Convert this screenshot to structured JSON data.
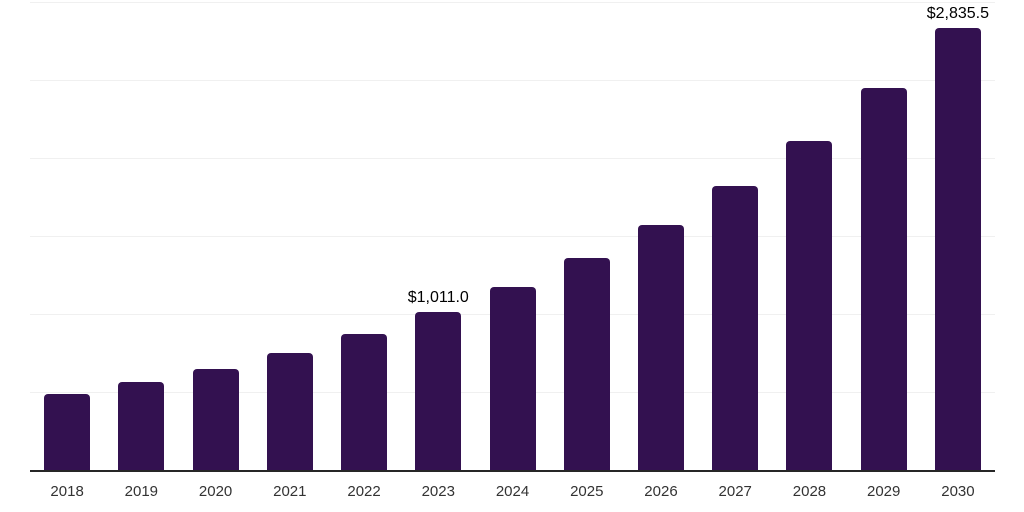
{
  "chart_data": {
    "type": "bar",
    "title": "",
    "xlabel": "",
    "ylabel": "",
    "categories": [
      "2018",
      "2019",
      "2020",
      "2021",
      "2022",
      "2023",
      "2024",
      "2025",
      "2026",
      "2027",
      "2028",
      "2029",
      "2030"
    ],
    "values": [
      485,
      562,
      650,
      753,
      872,
      1011.0,
      1171,
      1357,
      1573,
      1822,
      2112,
      2447,
      2835.5
    ],
    "labels": [
      "",
      "",
      "",
      "",
      "",
      "$1,011.0",
      "",
      "",
      "",
      "",
      "",
      "",
      "$2,835.5"
    ],
    "ylim": [
      0,
      3000
    ],
    "grid_step": 500,
    "grid": true,
    "legend": false,
    "colors": {
      "bar": "#331150",
      "gridline": "#f0f0f0",
      "axis": "#262626",
      "tick_label": "#333333",
      "data_label": "#000000"
    }
  }
}
